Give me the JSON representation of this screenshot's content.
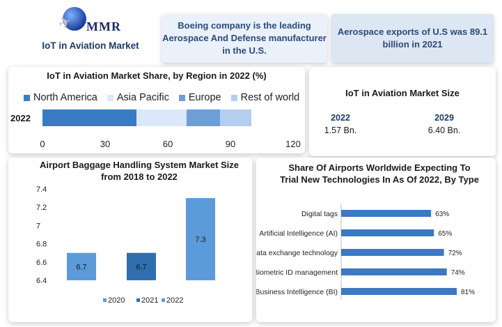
{
  "header": {
    "logo_text": "MMR",
    "report_title": "IoT in Aviation Market",
    "fact_1": "Boeing company is the leading Aerospace And Defense manufacturer in the U.S.",
    "fact_2": "Aerospace exports of U.S was 89.1 billion in 2021"
  },
  "market_size": {
    "title": "IoT in Aviation Market Size",
    "items": [
      {
        "year": "2022",
        "value": "1.57 Bn."
      },
      {
        "year": "2029",
        "value": "6.40 Bn."
      }
    ]
  },
  "colors": {
    "north_america": "#3a7cc4",
    "asia_pacific": "#dbe8fa",
    "europe": "#6e9ed6",
    "rest_of_world": "#b5cdee",
    "baggage_2020": "#5b9bd9",
    "baggage_2021": "#2f6fb0",
    "baggage_2022": "#5b9bd9",
    "airport_bar": "#3d78c2"
  },
  "chart_data": [
    {
      "type": "bar",
      "orientation": "horizontal-stacked",
      "title": "IoT in Aviation Market Share, by Region in 2022 (%)",
      "categories": [
        "2022"
      ],
      "series": [
        {
          "name": "North America",
          "values": [
            45
          ]
        },
        {
          "name": "Asia Pacific",
          "values": [
            24
          ]
        },
        {
          "name": "Europe",
          "values": [
            16
          ]
        },
        {
          "name": "Rest of world",
          "values": [
            15
          ]
        }
      ],
      "xlim": [
        0,
        120
      ],
      "xticks": [
        "0",
        "30",
        "60",
        "90",
        "120"
      ],
      "legend": "top"
    },
    {
      "type": "bar",
      "title": "Airport Baggage Handling System Market Size from 2018 to 2022",
      "categories": [
        "2020",
        "2021",
        "2022"
      ],
      "values": [
        6.7,
        6.7,
        7.3
      ],
      "data_labels": [
        "6.7",
        "6.7",
        "7.3"
      ],
      "ylim": [
        6.4,
        7.4
      ],
      "yticks": [
        "6.4",
        "6.6",
        "6.8",
        "7",
        "7.2",
        "7.4"
      ],
      "legend": "bottom"
    },
    {
      "type": "bar",
      "orientation": "horizontal",
      "title": "Share Of Airports Worldwide Expecting To Trial New Technologies In As Of 2022, By Type",
      "categories": [
        "Digital tags",
        "Artificial Intelligence (AI)",
        "Data exchange technology",
        "Biometric ID management",
        "Business Intelligence (BI)"
      ],
      "values": [
        63,
        65,
        72,
        74,
        81
      ],
      "data_labels": [
        "63%",
        "65%",
        "72%",
        "74%",
        "81%"
      ],
      "xlim": [
        0,
        100
      ]
    }
  ]
}
